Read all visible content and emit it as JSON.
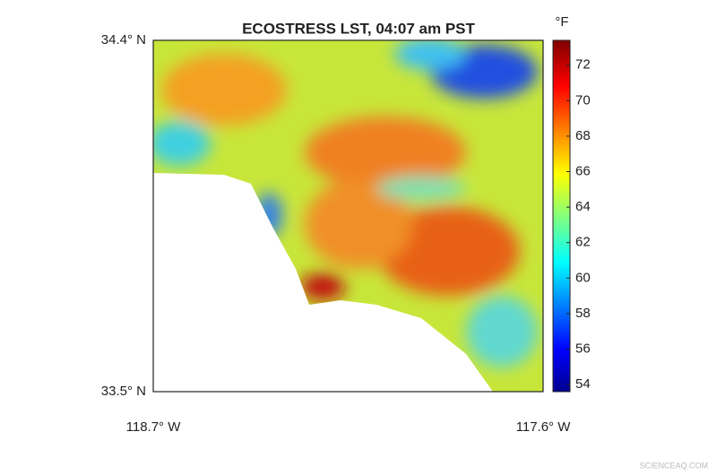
{
  "title": "ECOSTRESS LST, 04:07 am PST",
  "map": {
    "lat_lim": [
      33.5,
      34.4
    ],
    "lon_lim": [
      -118.7,
      -117.6
    ],
    "lat_ticks": [
      {
        "value": 34.4,
        "label": "34.4° N"
      },
      {
        "value": 33.5,
        "label": "33.5° N"
      }
    ],
    "lon_ticks": [
      {
        "value": -118.7,
        "label": "118.7° W"
      },
      {
        "value": -117.6,
        "label": "117.6° W"
      }
    ]
  },
  "colorbar": {
    "unit": "°F",
    "clim": [
      53.6,
      73.4
    ],
    "ticks": [
      54,
      56,
      58,
      60,
      62,
      64,
      66,
      68,
      70,
      72
    ],
    "colormap": "jet"
  },
  "watermark": "SCIENCEAQ.COM"
}
